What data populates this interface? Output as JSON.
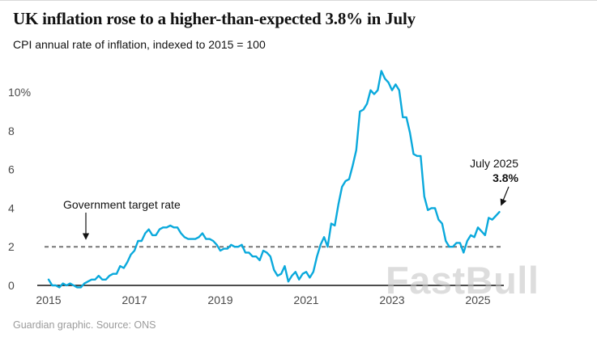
{
  "header": {
    "title": "UK inflation rose to a higher-than-expected 3.8% in July",
    "subtitle": "CPI annual rate of inflation, indexed to 2015 = 100"
  },
  "annotations": {
    "target_label": "Government target rate",
    "callout_line1": "July 2025",
    "callout_line2": "3.8%"
  },
  "footer": {
    "credit": "Guardian graphic. Source: ONS"
  },
  "watermark": "FastBull",
  "colors": {
    "line": "#0AA9DC",
    "target_dash": "#767676",
    "axis": "#121212",
    "tick_label": "#494949"
  },
  "chart_data": {
    "type": "line",
    "title": "UK inflation rose to a higher-than-expected 3.8% in July",
    "subtitle": "CPI annual rate of inflation, indexed to 2015 = 100",
    "ylabel": "CPI annual rate of inflation (%)",
    "xlabel": "",
    "frequency": "monthly",
    "x_start": "2015-01",
    "x_end": "2025-07",
    "ylim": [
      -0.5,
      11.5
    ],
    "yticks": [
      0,
      2,
      4,
      6,
      8,
      10
    ],
    "ytick_top_label": "10%",
    "xticks": [
      2015,
      2017,
      2019,
      2021,
      2023,
      2025
    ],
    "target_line_value": 2,
    "legend": "none",
    "grid": "off",
    "values": [
      0.3,
      0.0,
      0.0,
      -0.1,
      0.1,
      0.0,
      0.1,
      0.0,
      -0.1,
      -0.1,
      0.1,
      0.2,
      0.3,
      0.3,
      0.5,
      0.3,
      0.3,
      0.5,
      0.6,
      0.6,
      1.0,
      0.9,
      1.2,
      1.6,
      1.8,
      2.3,
      2.3,
      2.7,
      2.9,
      2.6,
      2.6,
      2.9,
      3.0,
      3.0,
      3.1,
      3.0,
      3.0,
      2.7,
      2.5,
      2.4,
      2.4,
      2.4,
      2.5,
      2.7,
      2.4,
      2.4,
      2.3,
      2.1,
      1.8,
      1.9,
      1.9,
      2.1,
      2.0,
      2.0,
      2.1,
      1.7,
      1.7,
      1.5,
      1.5,
      1.3,
      1.8,
      1.7,
      1.5,
      0.8,
      0.5,
      0.6,
      1.0,
      0.2,
      0.5,
      0.7,
      0.3,
      0.6,
      0.7,
      0.4,
      0.7,
      1.5,
      2.1,
      2.5,
      2.0,
      3.2,
      3.1,
      4.2,
      5.1,
      5.4,
      5.5,
      6.2,
      7.0,
      9.0,
      9.1,
      9.4,
      10.1,
      9.9,
      10.1,
      11.1,
      10.7,
      10.5,
      10.1,
      10.4,
      10.1,
      8.7,
      8.7,
      7.9,
      6.8,
      6.7,
      6.7,
      4.6,
      3.9,
      4.0,
      4.0,
      3.4,
      3.2,
      2.3,
      2.0,
      2.0,
      2.2,
      2.2,
      1.7,
      2.3,
      2.6,
      2.5,
      3.0,
      2.8,
      2.6,
      3.5,
      3.4,
      3.6,
      3.8
    ]
  }
}
